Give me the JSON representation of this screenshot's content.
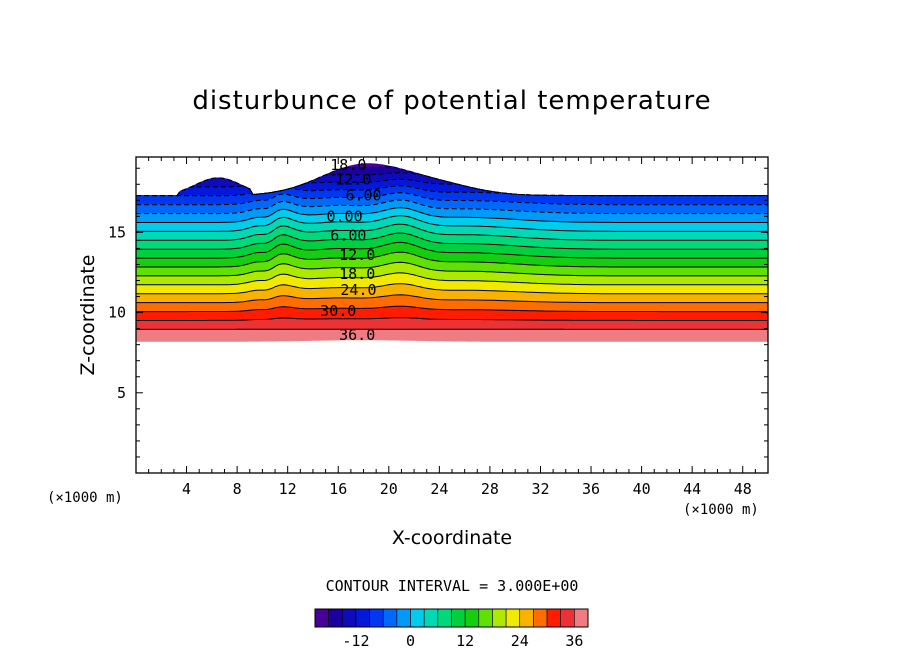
{
  "chart_data": {
    "type": "heatmap",
    "subtype": "filled contour",
    "title": "disturbunce of potential temperature",
    "xlabel": "X-coordinate",
    "ylabel": "Z-coordinate",
    "x_unit_label_left": "(×1000 m)",
    "x_unit_label_right": "(×1000 m)",
    "xlim": [
      0,
      50
    ],
    "ylim": [
      0,
      19.7
    ],
    "x_ticks": [
      4,
      8,
      12,
      16,
      20,
      24,
      28,
      32,
      36,
      40,
      44,
      48
    ],
    "y_ticks": [
      5,
      10,
      15
    ],
    "contour_interval_label": "CONTOUR INTERVAL = 3.000E+00",
    "contour_interval": 3.0,
    "value_range": [
      -21,
      39
    ],
    "contour_labels": [
      {
        "text": "18.0",
        "x": 16.8,
        "z": 19.2
      },
      {
        "text": "12.0",
        "x": 17.2,
        "z": 18.3
      },
      {
        "text": "6.00",
        "x": 18.0,
        "z": 17.3
      },
      {
        "text": "0.00",
        "x": 16.5,
        "z": 16.0
      },
      {
        "text": "6.00",
        "x": 16.8,
        "z": 14.8
      },
      {
        "text": "12.0",
        "x": 17.5,
        "z": 13.6
      },
      {
        "text": "18.0",
        "x": 17.5,
        "z": 12.4
      },
      {
        "text": "24.0",
        "x": 17.6,
        "z": 11.4
      },
      {
        "text": "30.0",
        "x": 16.0,
        "z": 10.1
      },
      {
        "text": "36.0",
        "x": 17.5,
        "z": 8.6
      }
    ],
    "colorbar": {
      "tick_labels": [
        "-12",
        "0",
        "12",
        "24",
        "36"
      ],
      "tick_values": [
        -12,
        0,
        12,
        24,
        36
      ]
    },
    "grid": false
  }
}
